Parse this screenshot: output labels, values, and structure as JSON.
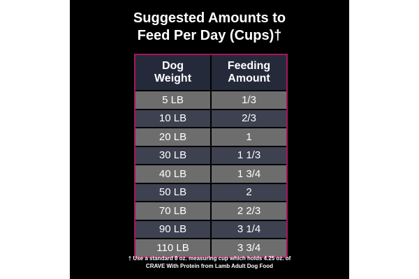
{
  "title": {
    "line1": "Suggested Amounts to",
    "line2": "Feed Per Day (Cups)†"
  },
  "table": {
    "headers": [
      {
        "line1": "Dog",
        "line2": "Weight"
      },
      {
        "line1": "Feeding",
        "line2": "Amount"
      }
    ],
    "rows": [
      {
        "weight": "5 LB",
        "amount": "1/3"
      },
      {
        "weight": "10 LB",
        "amount": "2/3"
      },
      {
        "weight": "20 LB",
        "amount": "1"
      },
      {
        "weight": "30 LB",
        "amount": "1 1/3"
      },
      {
        "weight": "40 LB",
        "amount": "1 3/4"
      },
      {
        "weight": "50 LB",
        "amount": "2"
      },
      {
        "weight": "70 LB",
        "amount": "2 2/3"
      },
      {
        "weight": "90 LB",
        "amount": "3 1/4"
      },
      {
        "weight": "110 LB",
        "amount": "3 3/4"
      }
    ]
  },
  "footnote": {
    "line1": "† Use a standard 8 oz. measuring cup which holds 4.25 oz. of",
    "line2": "CRAVE With Protein from Lamb Adult Dog Food"
  },
  "colors": {
    "background": "#000000",
    "border": "#a9155a",
    "header_bg": "#252a3a",
    "row_light": "#6d6d6d",
    "row_dark": "#3d4150"
  }
}
